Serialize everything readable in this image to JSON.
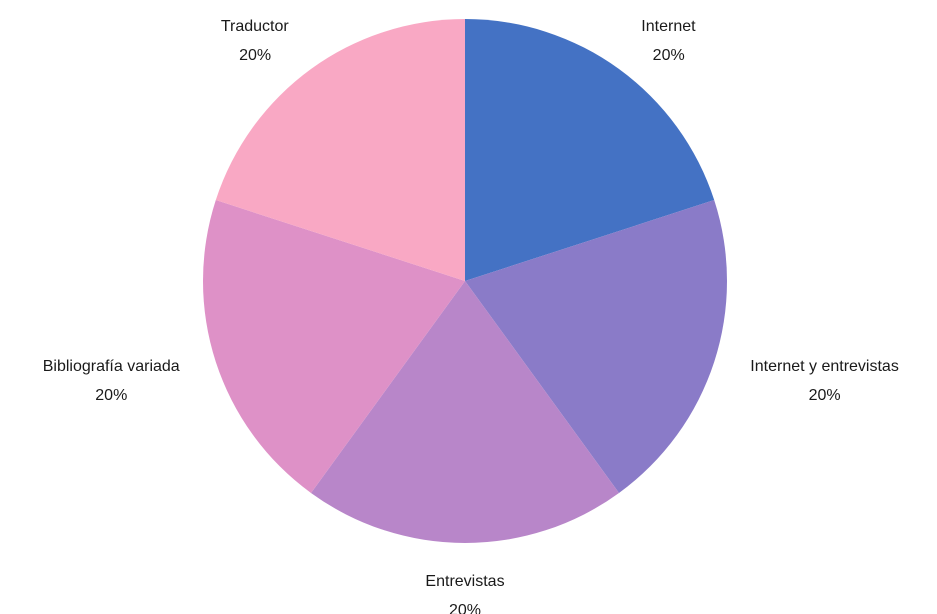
{
  "chart_data": {
    "type": "pie",
    "title": "",
    "categories": [
      "Internet",
      "Internet y entrevistas",
      "Entrevistas",
      "Bibliografía variada",
      "Traductor"
    ],
    "values": [
      20,
      20,
      20,
      20,
      20
    ],
    "value_labels": [
      "20%",
      "20%",
      "20%",
      "20%",
      "20%"
    ],
    "colors": [
      "#4472c4",
      "#8a7bc8",
      "#b886c9",
      "#de91c7",
      "#f9a8c4"
    ],
    "start_angle_deg": 0,
    "direction": "clockwise",
    "legend": "none"
  }
}
